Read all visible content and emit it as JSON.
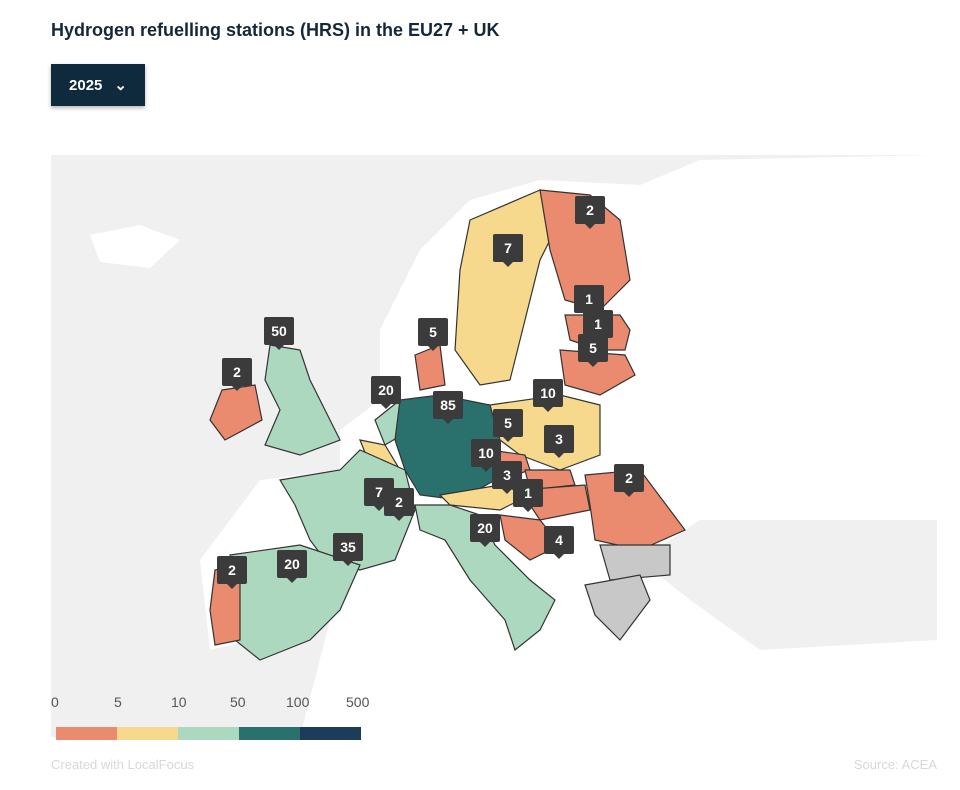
{
  "title": "Hydrogen refuelling stations (HRS) in the EU27 + UK",
  "year_selector": {
    "selected": "2025",
    "icon": "chevron-down-icon"
  },
  "colors": {
    "orange": "#ea8a6f",
    "yellow": "#f6d98c",
    "mint": "#acd8bf",
    "teal": "#2a706d",
    "navy": "#1d3c5a",
    "no_data": "#c8c8c8",
    "land": "#ffffff",
    "sea": "#f0f0f0"
  },
  "markers": [
    "2",
    "7",
    "1",
    "1",
    "5",
    "5",
    "50",
    "2",
    "20",
    "85",
    "10",
    "5",
    "3",
    "10",
    "3",
    "1",
    "2",
    "7",
    "2",
    "35",
    "20",
    "4",
    "2",
    "20"
  ],
  "legend": {
    "labels": [
      "0",
      "5",
      "10",
      "50",
      "100",
      "500"
    ]
  },
  "footer": {
    "credit": "Created with LocalFocus",
    "source": "Source: ACEA"
  }
}
